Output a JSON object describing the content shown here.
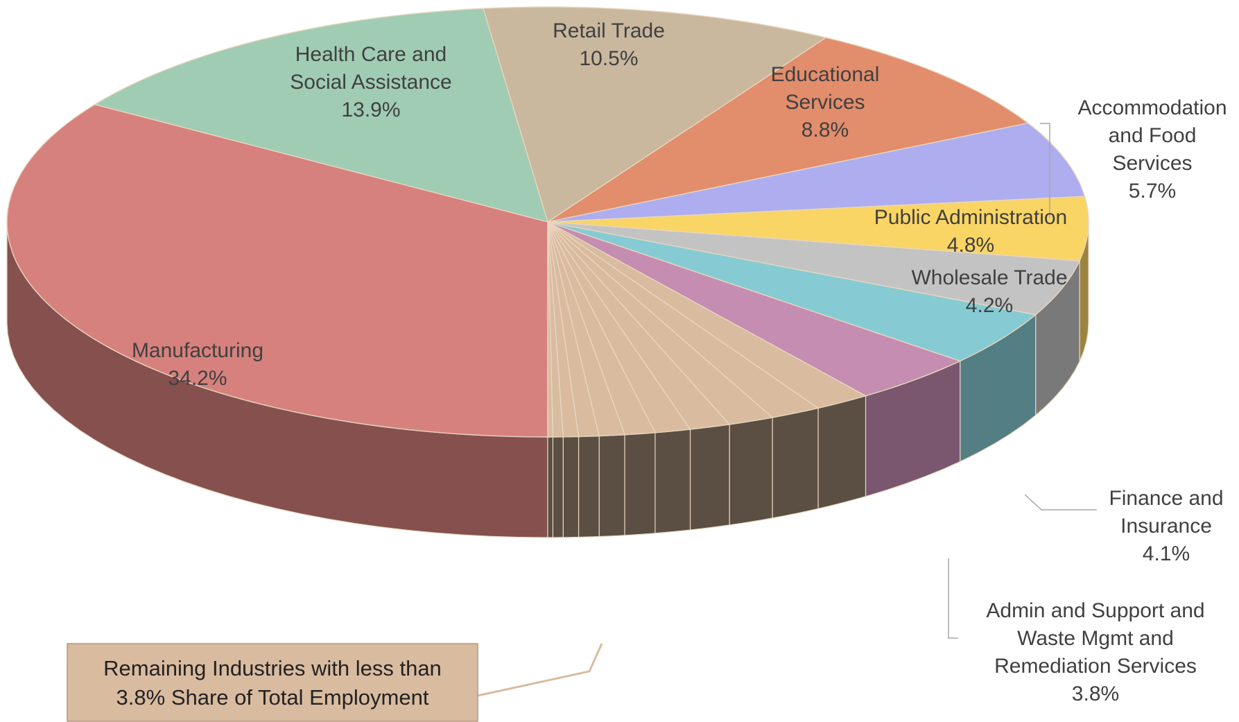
{
  "chart_data": {
    "type": "pie",
    "style": "3d-exploded-tilted",
    "series": [
      {
        "label_lines": [
          "Manufacturing"
        ],
        "value": 34.2,
        "value_label": "34.2%",
        "color": "#D6817D"
      },
      {
        "label_lines": [
          "Health Care and",
          "Social Assistance"
        ],
        "value": 13.9,
        "value_label": "13.9%",
        "color": "#A0CCB3"
      },
      {
        "label_lines": [
          "Retail Trade"
        ],
        "value": 10.5,
        "value_label": "10.5%",
        "color": "#C9B89E"
      },
      {
        "label_lines": [
          "Educational",
          "Services"
        ],
        "value": 8.8,
        "value_label": "8.8%",
        "color": "#E28D6C"
      },
      {
        "label_lines": [
          "Accommodation",
          "and Food",
          "Services"
        ],
        "value": 5.7,
        "value_label": "5.7%",
        "color": "#ADADEF"
      },
      {
        "label_lines": [
          "Public Administration"
        ],
        "value": 4.8,
        "value_label": "4.8%",
        "color": "#F9D565"
      },
      {
        "label_lines": [
          "Wholesale Trade"
        ],
        "value": 4.2,
        "value_label": "4.2%",
        "color": "#C3C3C3"
      },
      {
        "label_lines": [
          "Finance and",
          "Insurance"
        ],
        "value": 4.1,
        "value_label": "4.1%",
        "color": "#86CBD3"
      },
      {
        "label_lines": [
          "Admin and Support and",
          "Waste Mgmt and",
          "Remediation Services"
        ],
        "value": 3.8,
        "value_label": "3.8%",
        "color": "#C58DB1"
      }
    ],
    "remaining": {
      "label_lines": [
        "Remaining Industries with less than",
        "3.8% Share of Total Employment"
      ],
      "color": "#D9BBA0",
      "box_color": "#D9BBA0",
      "slice_count": 11
    }
  }
}
